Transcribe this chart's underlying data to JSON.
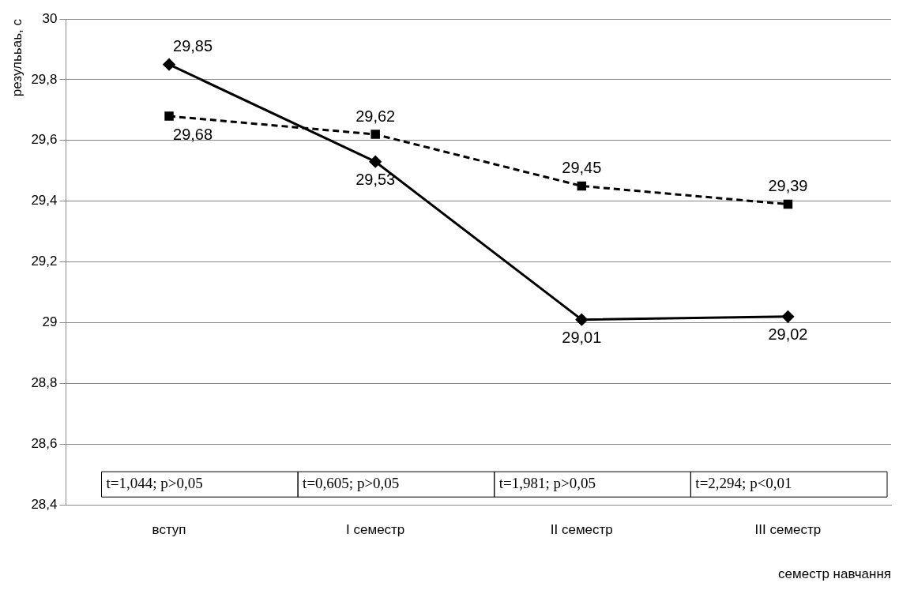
{
  "chart_data": {
    "type": "line",
    "ylabel": "резулььаь, с",
    "xlabel": "семестр навчання",
    "categories": [
      "вступ",
      "I семестр",
      "II семестр",
      "III семестр"
    ],
    "series": [
      {
        "color": "#000000",
        "marker": "diamond",
        "line_style": "solid",
        "values": [
          29.85,
          29.53,
          29.01,
          29.02
        ],
        "value_labels": [
          "29,85",
          "29,53",
          "29,01",
          "29,02"
        ]
      },
      {
        "color": "#000000",
        "marker": "square",
        "line_style": "dashed",
        "values": [
          29.68,
          29.62,
          29.45,
          29.39
        ],
        "value_labels": [
          "29,68",
          "29,62",
          "29,45",
          "29,39"
        ]
      }
    ],
    "ylim": [
      28.4,
      30
    ],
    "yticks": [
      {
        "value": 28.4,
        "label": "28,4"
      },
      {
        "value": 28.6,
        "label": "28,6"
      },
      {
        "value": 28.8,
        "label": "28,8"
      },
      29,
      {
        "value": 29.2,
        "label": "29,2"
      },
      {
        "value": 29.4,
        "label": "29,4"
      },
      {
        "value": 29.6,
        "label": "29,6"
      },
      {
        "value": 29.8,
        "label": "29,8"
      },
      30
    ],
    "grid": "y",
    "legend": false,
    "annotations": [
      "t=1,044; p>0,05",
      "t=0,605; p>0,05",
      "t=1,981; p>0,05",
      "t=2,294; p<0,01"
    ]
  }
}
